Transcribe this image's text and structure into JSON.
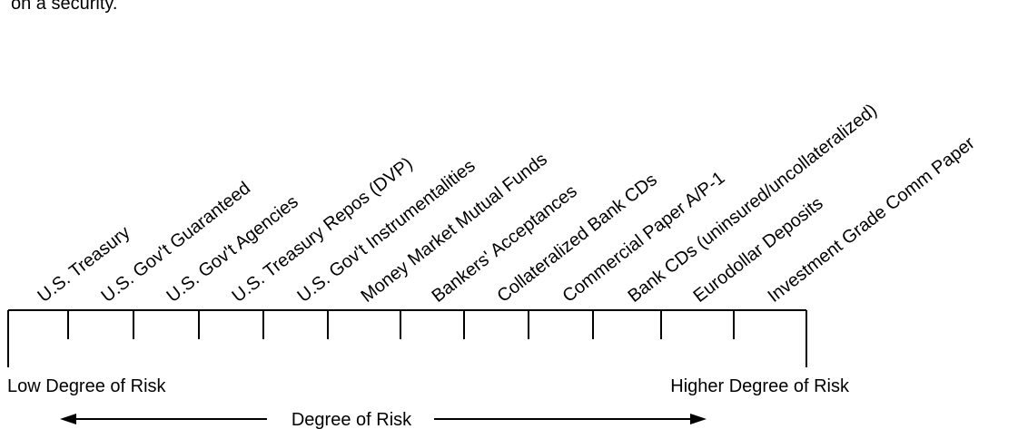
{
  "header_fragment": "on a security.",
  "securities": [
    "U.S. Treasury",
    "U.S. Gov't Guaranteed",
    "U.S. Gov't Agencies",
    "U.S. Treasury Repos (DVP)",
    "U.S. Gov't Instrumentalities",
    "Money Market Mutual Funds",
    "Bankers' Acceptances",
    "Collateralized Bank CDs",
    "Commercial Paper A/P-1",
    "Bank CDs (uninsured/uncollateralized)",
    "Eurodollar Deposits",
    "Investment Grade Comm Paper"
  ],
  "scale": {
    "low_label": "Low Degree of Risk",
    "high_label": "Higher Degree of Risk",
    "axis_label": "Degree of Risk"
  },
  "colors": {
    "ink": "#000000",
    "background": "#ffffff"
  }
}
